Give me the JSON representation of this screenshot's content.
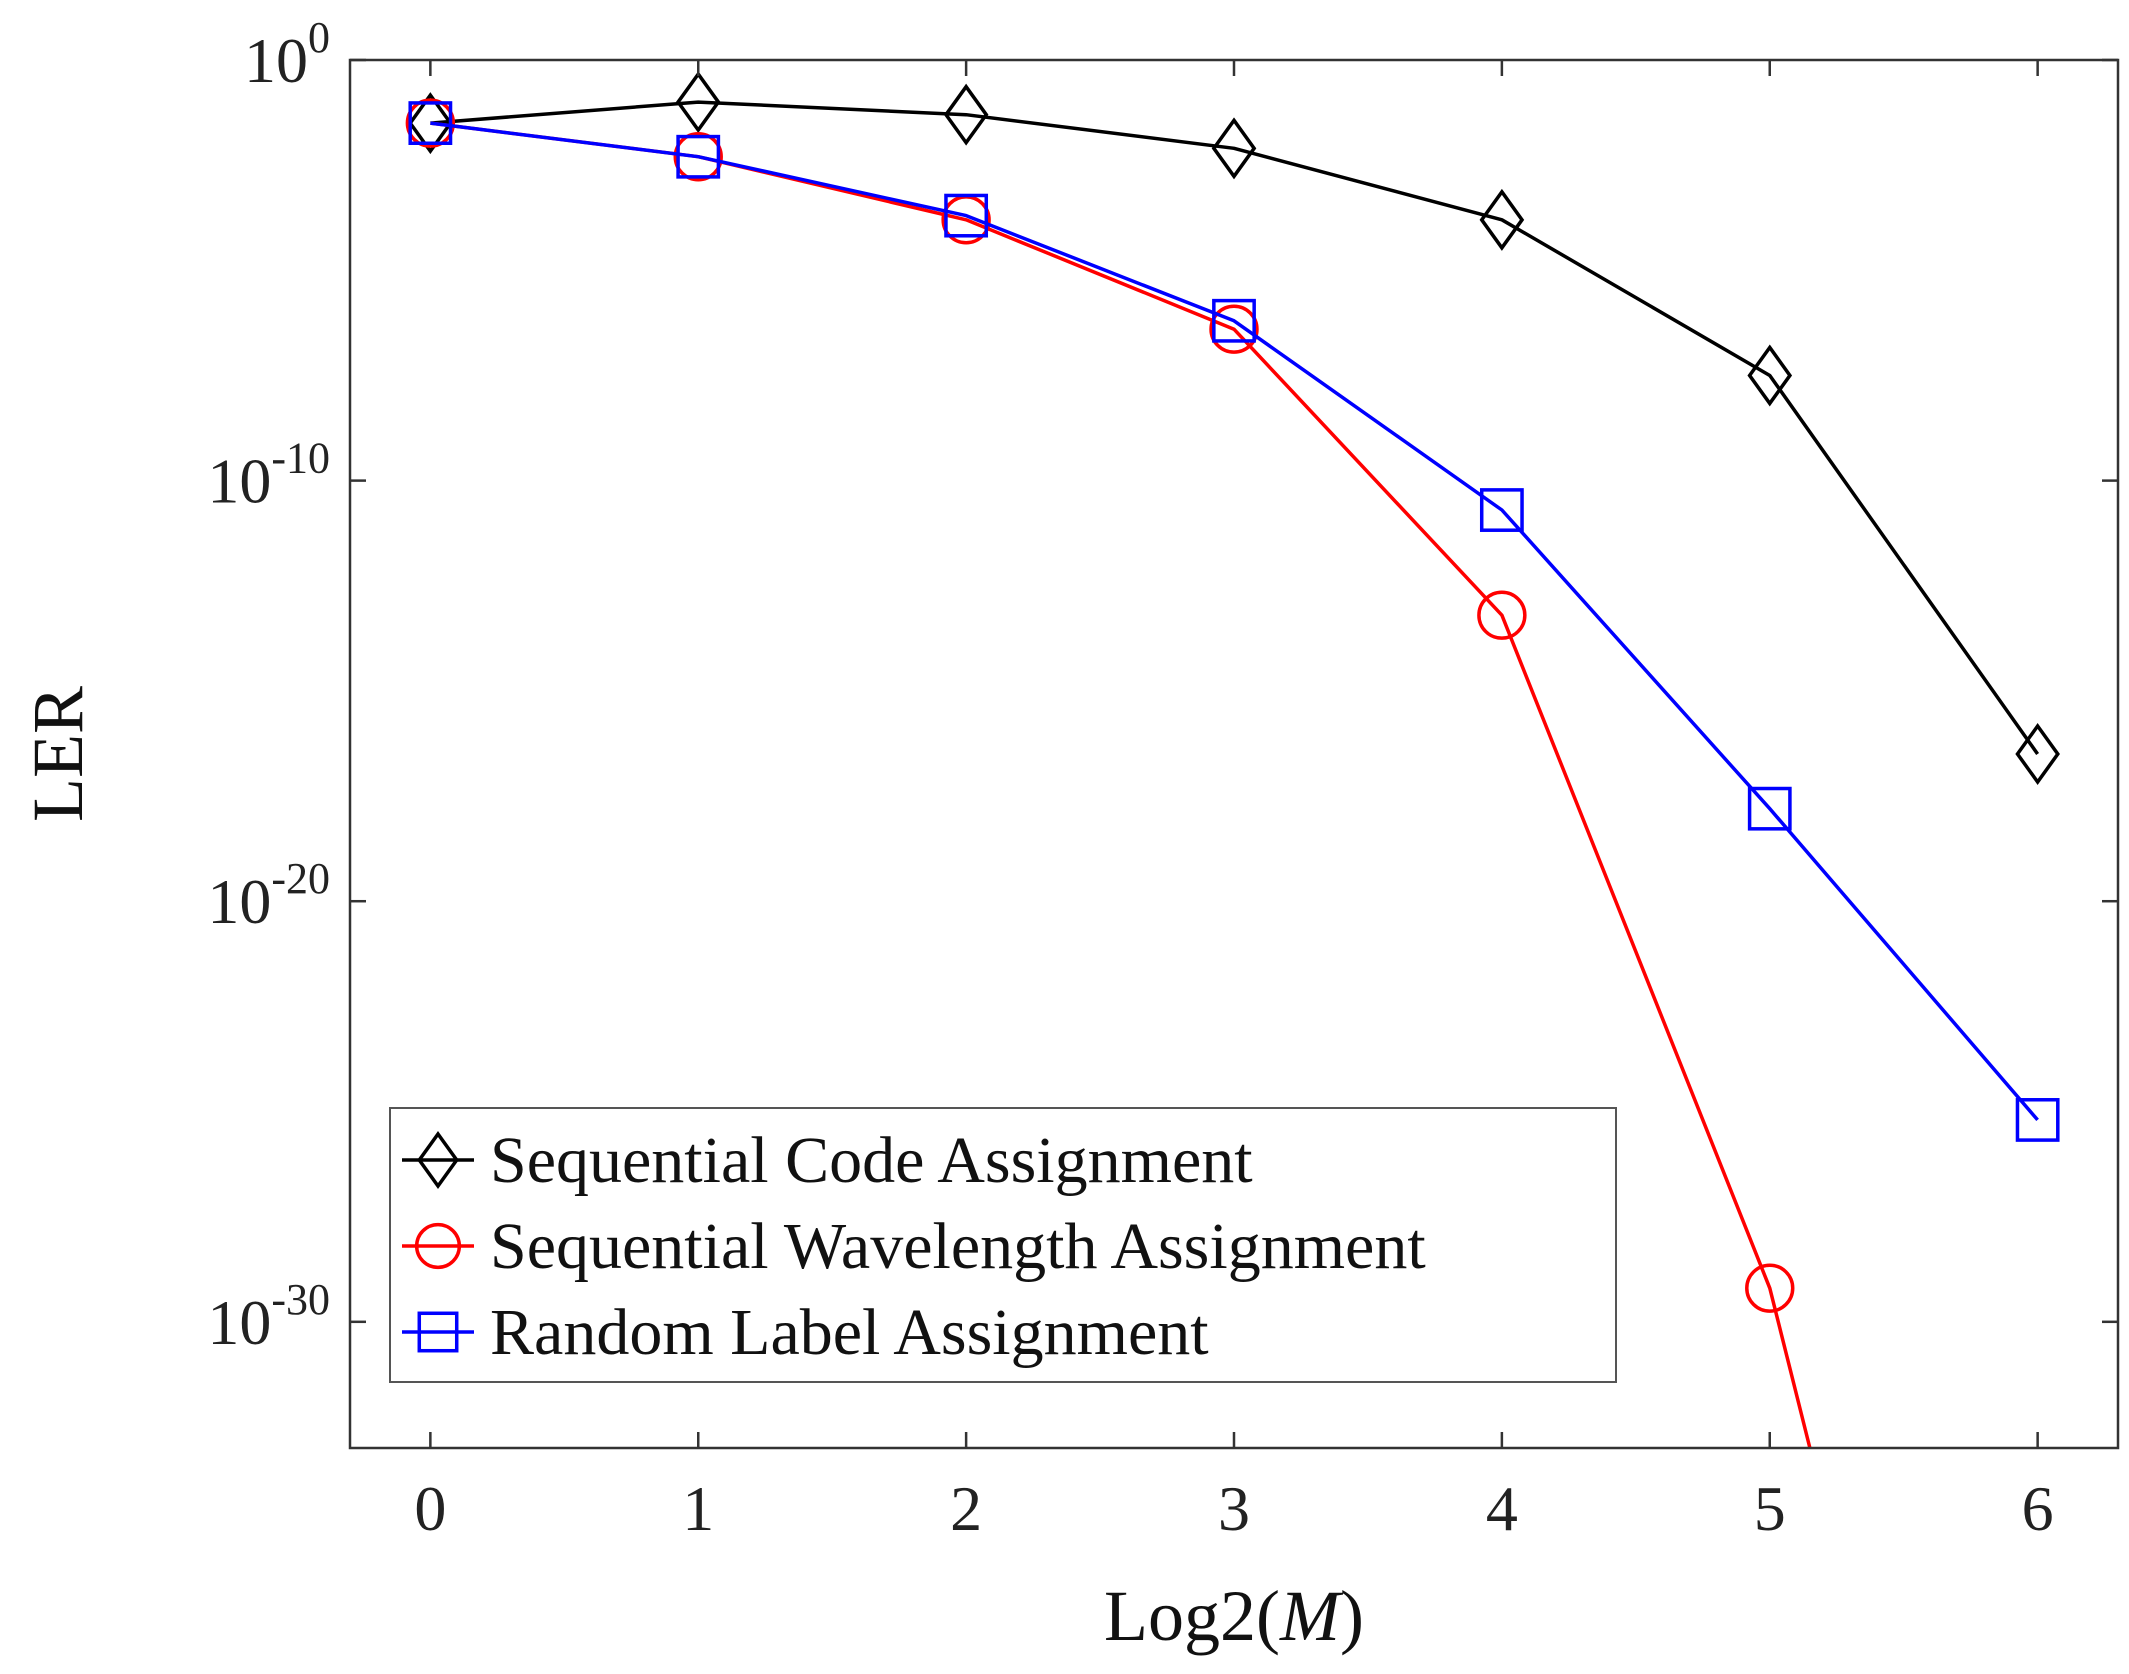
{
  "chart_data": {
    "type": "line",
    "title": "",
    "xlabel": "Log2(M)",
    "xlabel_parts": {
      "prefix": "Log2(",
      "italic": "M",
      "suffix": ")"
    },
    "ylabel": "LER",
    "y_scale": "log",
    "xlim": [
      -0.3,
      6.3
    ],
    "ylim_exponent": [
      -33,
      0
    ],
    "x_ticks": [
      0,
      1,
      2,
      3,
      4,
      5,
      6
    ],
    "y_ticks": [
      {
        "base": "10",
        "exponent": "0",
        "value_exponent": 0
      },
      {
        "base": "10",
        "exponent": "-10",
        "value_exponent": -10
      },
      {
        "base": "10",
        "exponent": "-20",
        "value_exponent": -20
      },
      {
        "base": "10",
        "exponent": "-30",
        "value_exponent": -30
      }
    ],
    "grid": false,
    "legend_position": "bottom-left",
    "series": [
      {
        "name": "Sequential Code Assignment",
        "color": "#000000",
        "marker": "diamond",
        "x": [
          0,
          1,
          2,
          3,
          4,
          5,
          6
        ],
        "log10_y": [
          -1.5,
          -1.0,
          -1.3,
          -2.1,
          -3.8,
          -7.5,
          -16.5
        ]
      },
      {
        "name": "Sequential Wavelength Assignment",
        "color": "#ff0000",
        "marker": "circle",
        "x": [
          0,
          1,
          2,
          3,
          4,
          5,
          5.15
        ],
        "log10_y": [
          -1.5,
          -2.3,
          -3.8,
          -6.4,
          -13.2,
          -29.2,
          -33
        ],
        "marker_count": 6
      },
      {
        "name": "Random Label Assignment",
        "color": "#0000ff",
        "marker": "square",
        "x": [
          0,
          1,
          2,
          3,
          4,
          5,
          6
        ],
        "log10_y": [
          -1.5,
          -2.3,
          -3.7,
          -6.2,
          -10.7,
          -17.8,
          -25.2
        ]
      }
    ]
  }
}
